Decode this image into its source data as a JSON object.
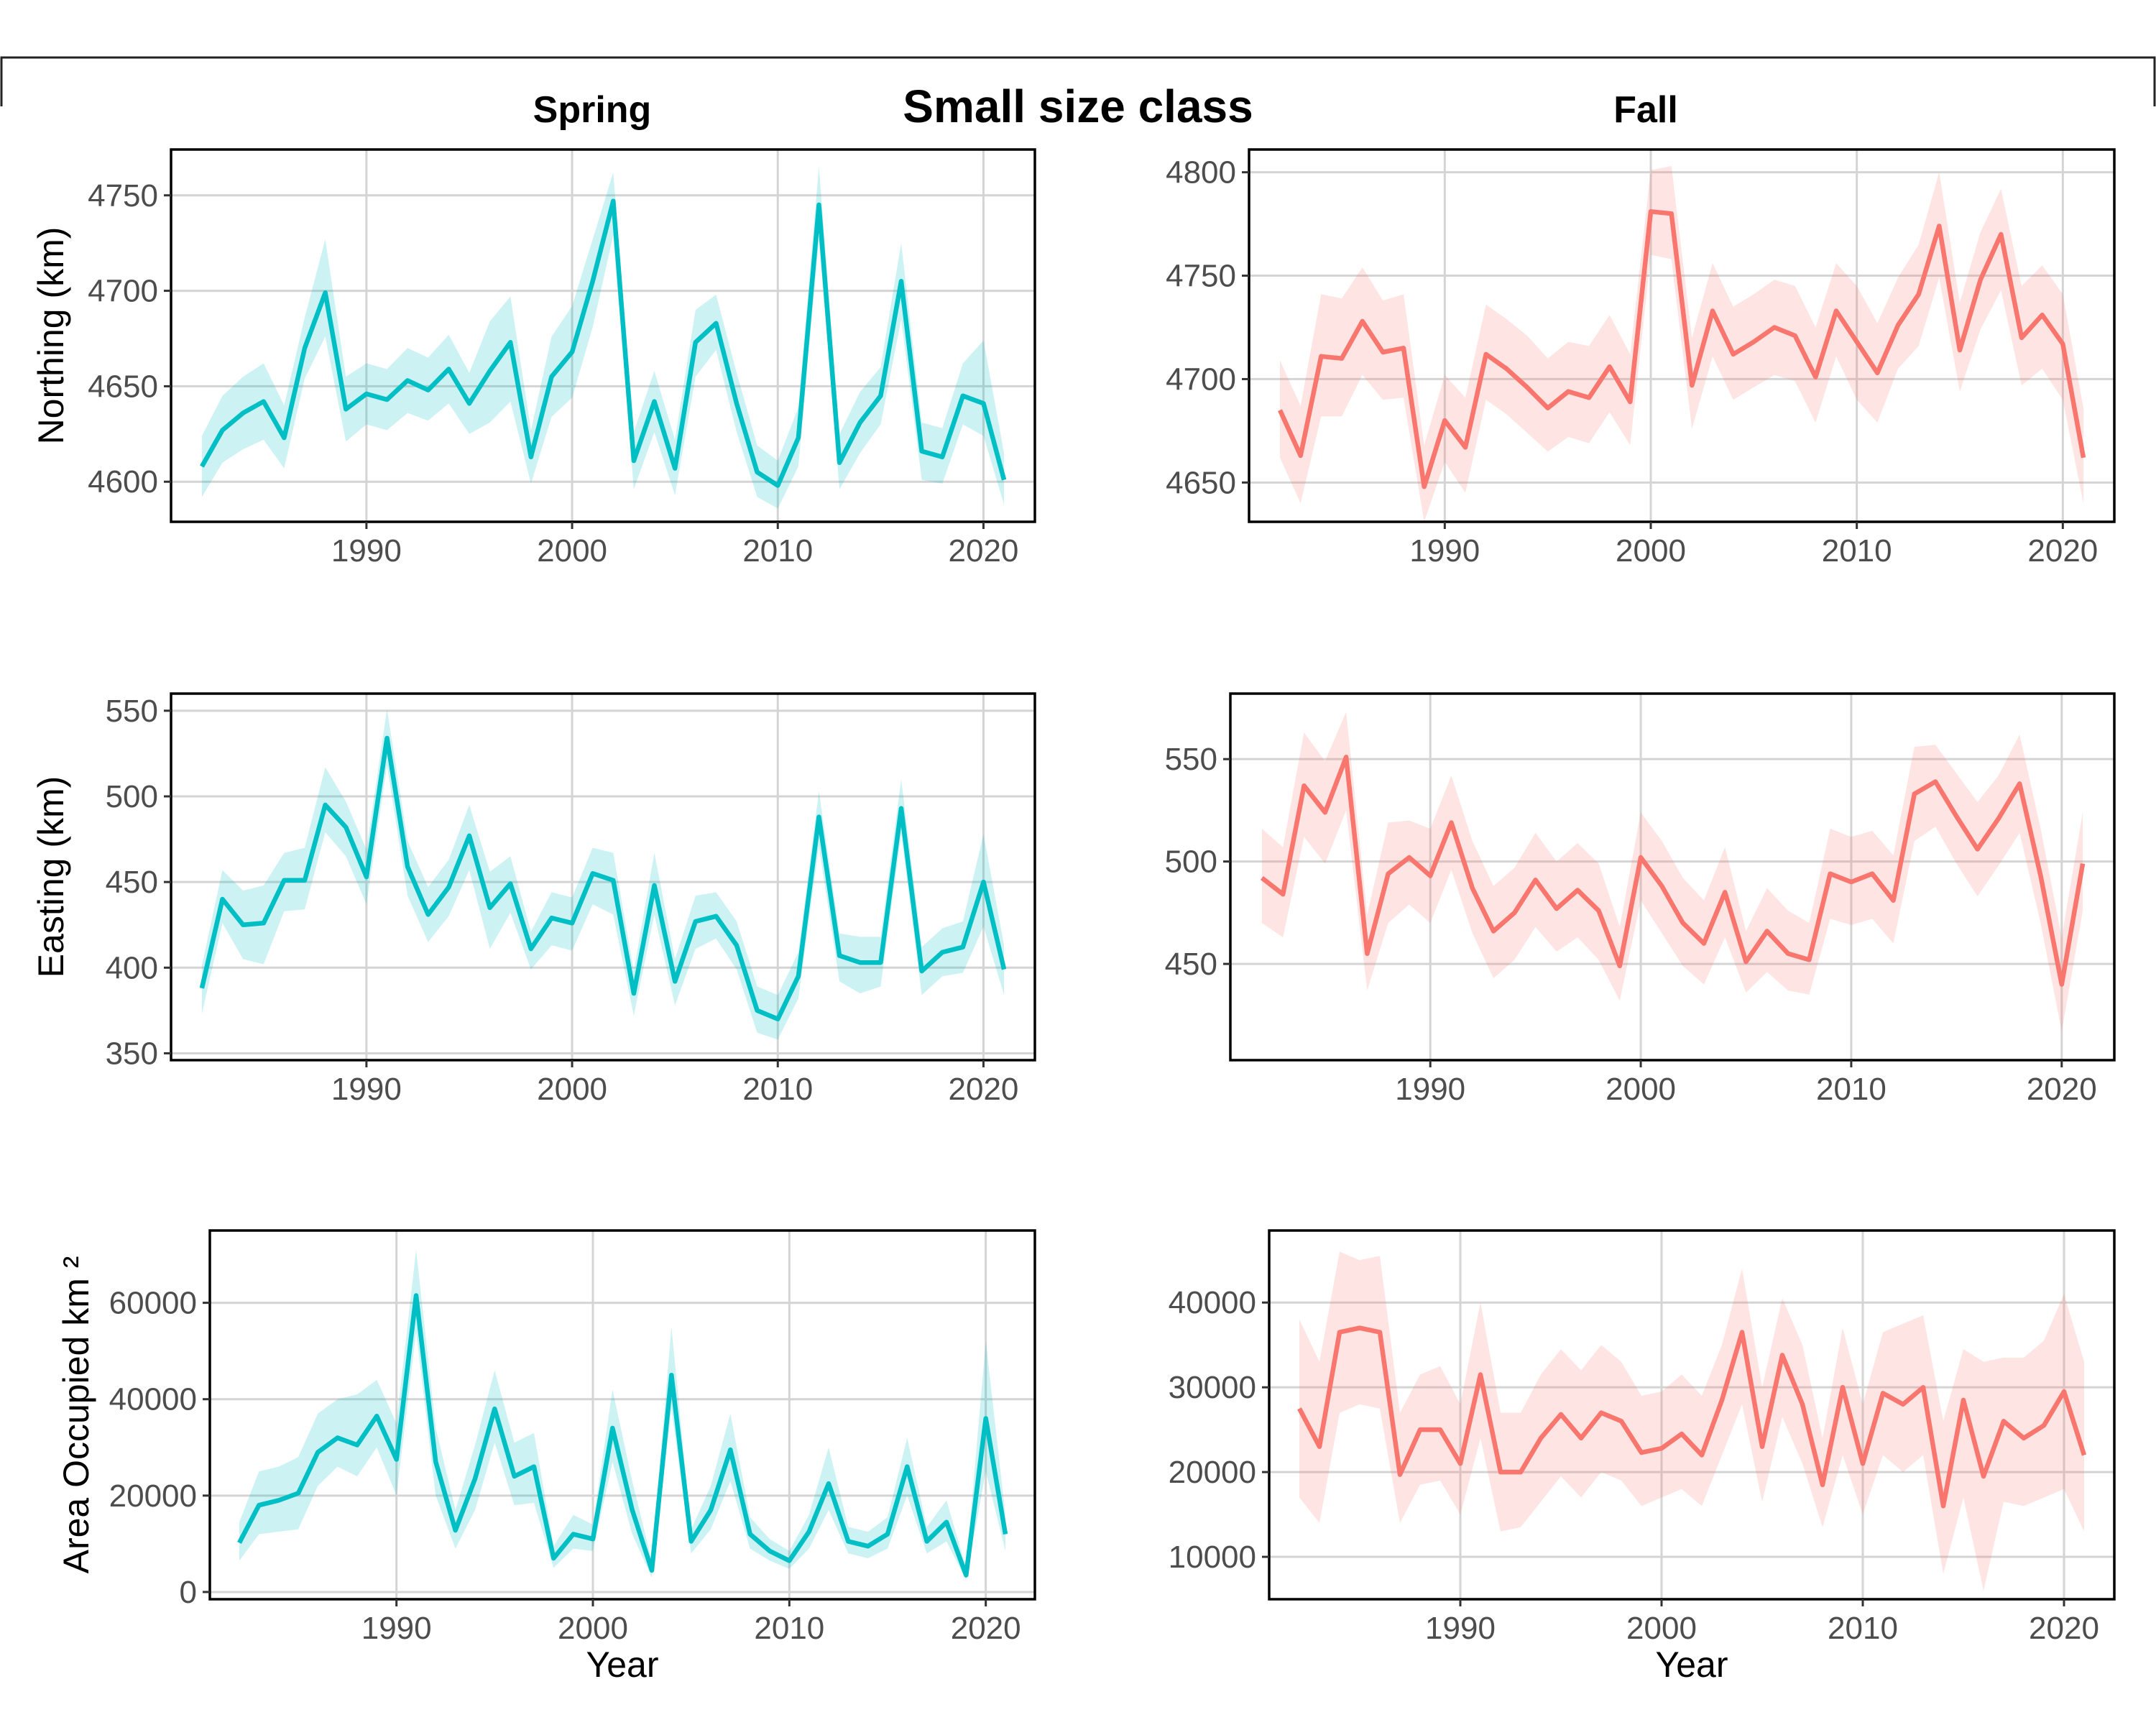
{
  "figure": {
    "title": "Small size class",
    "columns": [
      "Spring",
      "Fall"
    ],
    "xlabel": "Year"
  },
  "colors": {
    "spring": "#00BFC4",
    "fall": "#F8766D",
    "grid": "#d4d4d4"
  },
  "chart_data": [
    {
      "type": "line",
      "season": "Spring",
      "metric": "Northing",
      "ylabel": "Northing (km)",
      "xlim": [
        1980.5,
        2022.5
      ],
      "ylim": [
        4579,
        4774
      ],
      "xticks": [
        1990,
        2000,
        2010,
        2020
      ],
      "yticks": [
        4600,
        4650,
        4700,
        4750
      ],
      "x": [
        1982,
        1983,
        1984,
        1985,
        1986,
        1987,
        1988,
        1989,
        1990,
        1991,
        1992,
        1993,
        1994,
        1995,
        1996,
        1997,
        1998,
        1999,
        2000,
        2001,
        2002,
        2003,
        2004,
        2005,
        2006,
        2007,
        2008,
        2009,
        2010,
        2011,
        2012,
        2013,
        2014,
        2015,
        2016,
        2017,
        2018,
        2019,
        2020,
        2021
      ],
      "y": [
        4608,
        4627,
        4636,
        4642,
        4623,
        4670,
        4699,
        4638,
        4646,
        4643,
        4653,
        4648,
        4659,
        4641,
        4658,
        4673,
        4613,
        4655,
        4668,
        4705,
        4747,
        4611,
        4642,
        4607,
        4673,
        4683,
        4641,
        4605,
        4598,
        4623,
        4745,
        4610,
        4631,
        4645,
        4705,
        4616,
        4613,
        4645,
        4641,
        4601
      ],
      "lower": [
        4592,
        4610,
        4617,
        4622,
        4607,
        4654,
        4676,
        4621,
        4630,
        4627,
        4636,
        4632,
        4641,
        4625,
        4631,
        4642,
        4599,
        4634,
        4644,
        4681,
        4729,
        4596,
        4626,
        4593,
        4655,
        4669,
        4626,
        4592,
        4586,
        4608,
        4727,
        4596,
        4615,
        4630,
        4685,
        4601,
        4599,
        4630,
        4624,
        4588
      ],
      "upper": [
        4624,
        4645,
        4655,
        4662,
        4640,
        4686,
        4727,
        4655,
        4662,
        4659,
        4670,
        4665,
        4677,
        4657,
        4684,
        4697,
        4627,
        4676,
        4692,
        4727,
        4762,
        4626,
        4658,
        4622,
        4690,
        4698,
        4657,
        4619,
        4611,
        4639,
        4765,
        4625,
        4647,
        4660,
        4725,
        4631,
        4628,
        4662,
        4674,
        4615
      ]
    },
    {
      "type": "line",
      "season": "Fall",
      "metric": "Northing",
      "ylabel": "",
      "xlim": [
        1980.5,
        2022.5
      ],
      "ylim": [
        4631,
        4811
      ],
      "xticks": [
        1990,
        2000,
        2010,
        2020
      ],
      "yticks": [
        4650,
        4700,
        4750,
        4800
      ],
      "x": [
        1982,
        1983,
        1984,
        1985,
        1986,
        1987,
        1988,
        1989,
        1990,
        1991,
        1992,
        1993,
        1994,
        1995,
        1996,
        1997,
        1998,
        1999,
        2000,
        2001,
        2002,
        2003,
        2004,
        2005,
        2006,
        2007,
        2008,
        2009,
        2010,
        2011,
        2012,
        2013,
        2014,
        2015,
        2016,
        2017,
        2018,
        2019,
        2020,
        2021
      ],
      "y": [
        4685,
        4663,
        4711,
        4710,
        4728,
        4713,
        4715,
        4648,
        4680,
        4667,
        4712,
        4705,
        4696,
        4686,
        4694,
        4691,
        4706,
        4689,
        4781,
        4780,
        4697,
        4733,
        4712,
        4718,
        4725,
        4721,
        4701,
        4733,
        4718,
        4703,
        4726,
        4741,
        4774,
        4714,
        4748,
        4770,
        4720,
        4731,
        4717,
        4662
      ],
      "lower": [
        4662,
        4640,
        4682,
        4682,
        4702,
        4690,
        4691,
        4631,
        4660,
        4645,
        4690,
        4683,
        4674,
        4665,
        4672,
        4669,
        4684,
        4668,
        4760,
        4758,
        4676,
        4711,
        4690,
        4696,
        4702,
        4699,
        4679,
        4711,
        4690,
        4679,
        4705,
        4716,
        4749,
        4694,
        4724,
        4743,
        4697,
        4705,
        4690,
        4640
      ],
      "upper": [
        4709,
        4687,
        4741,
        4739,
        4754,
        4738,
        4741,
        4668,
        4702,
        4691,
        4736,
        4729,
        4721,
        4710,
        4718,
        4716,
        4731,
        4712,
        4801,
        4803,
        4720,
        4756,
        4735,
        4741,
        4748,
        4745,
        4725,
        4756,
        4745,
        4727,
        4749,
        4765,
        4800,
        4737,
        4771,
        4792,
        4745,
        4755,
        4741,
        4686
      ]
    },
    {
      "type": "line",
      "season": "Spring",
      "metric": "Easting",
      "ylabel": "Easting (km)",
      "xlim": [
        1980.5,
        2022.5
      ],
      "ylim": [
        346,
        560
      ],
      "xticks": [
        1990,
        2000,
        2010,
        2020
      ],
      "yticks": [
        350,
        400,
        450,
        500,
        550
      ],
      "x": [
        1982,
        1983,
        1984,
        1985,
        1986,
        1987,
        1988,
        1989,
        1990,
        1991,
        1992,
        1993,
        1994,
        1995,
        1996,
        1997,
        1998,
        1999,
        2000,
        2001,
        2002,
        2003,
        2004,
        2005,
        2006,
        2007,
        2008,
        2009,
        2010,
        2011,
        2012,
        2013,
        2014,
        2015,
        2016,
        2017,
        2018,
        2019,
        2020,
        2021
      ],
      "y": [
        388,
        440,
        425,
        426,
        451,
        451,
        495,
        482,
        453,
        534,
        459,
        431,
        447,
        477,
        435,
        449,
        411,
        429,
        426,
        455,
        451,
        385,
        448,
        392,
        427,
        430,
        413,
        375,
        370,
        395,
        488,
        407,
        403,
        403,
        493,
        398,
        409,
        412,
        450,
        399
      ],
      "lower": [
        373,
        426,
        405,
        402,
        433,
        434,
        479,
        465,
        437,
        518,
        442,
        415,
        430,
        457,
        411,
        432,
        399,
        413,
        410,
        437,
        431,
        372,
        431,
        378,
        411,
        417,
        399,
        362,
        358,
        382,
        471,
        392,
        385,
        389,
        478,
        384,
        395,
        397,
        424,
        384
      ],
      "upper": [
        401,
        457,
        445,
        448,
        467,
        470,
        517,
        497,
        469,
        551,
        474,
        447,
        463,
        495,
        456,
        465,
        421,
        444,
        441,
        470,
        467,
        398,
        467,
        405,
        442,
        444,
        427,
        389,
        384,
        409,
        503,
        420,
        418,
        418,
        510,
        412,
        423,
        427,
        478,
        413
      ]
    },
    {
      "type": "line",
      "season": "Fall",
      "metric": "Easting",
      "ylabel": "",
      "xlim": [
        1980.5,
        2022.5
      ],
      "ylim": [
        403,
        582
      ],
      "xticks": [
        1990,
        2000,
        2010,
        2020
      ],
      "yticks": [
        450,
        500,
        550
      ],
      "x": [
        1982,
        1983,
        1984,
        1985,
        1986,
        1987,
        1988,
        1989,
        1990,
        1991,
        1992,
        1993,
        1994,
        1995,
        1996,
        1997,
        1998,
        1999,
        2000,
        2001,
        2002,
        2003,
        2004,
        2005,
        2006,
        2007,
        2008,
        2009,
        2010,
        2011,
        2012,
        2013,
        2014,
        2015,
        2016,
        2017,
        2018,
        2019,
        2020,
        2021
      ],
      "y": [
        492,
        484,
        537,
        524,
        551,
        455,
        494,
        502,
        493,
        519,
        487,
        466,
        475,
        491,
        477,
        486,
        476,
        449,
        502,
        488,
        470,
        460,
        485,
        451,
        466,
        455,
        452,
        494,
        490,
        494,
        481,
        533,
        539,
        522,
        506,
        521,
        538,
        493,
        440,
        499
      ],
      "lower": [
        470,
        463,
        512,
        499,
        525,
        437,
        470,
        479,
        470,
        496,
        465,
        443,
        452,
        468,
        456,
        463,
        452,
        432,
        481,
        465,
        449,
        440,
        463,
        436,
        446,
        437,
        435,
        472,
        469,
        472,
        460,
        510,
        517,
        499,
        483,
        498,
        514,
        470,
        417,
        476
      ],
      "upper": [
        516,
        507,
        563,
        549,
        573,
        474,
        519,
        520,
        516,
        542,
        510,
        488,
        497,
        514,
        500,
        509,
        499,
        468,
        524,
        510,
        492,
        481,
        507,
        466,
        487,
        476,
        470,
        516,
        512,
        515,
        503,
        556,
        557,
        543,
        529,
        542,
        562,
        516,
        463,
        524
      ]
    },
    {
      "type": "line",
      "season": "Spring",
      "metric": "Area Occupied",
      "ylabel": "Area Occupied km ²",
      "xlim": [
        1980.5,
        2022.5
      ],
      "ylim": [
        -1500,
        75000
      ],
      "xticks": [
        1990,
        2000,
        2010,
        2020
      ],
      "yticks": [
        0,
        20000,
        40000,
        60000
      ],
      "x": [
        1982,
        1983,
        1984,
        1985,
        1986,
        1987,
        1988,
        1989,
        1990,
        1991,
        1992,
        1993,
        1994,
        1995,
        1996,
        1997,
        1998,
        1999,
        2000,
        2001,
        2002,
        2003,
        2004,
        2005,
        2006,
        2007,
        2008,
        2009,
        2010,
        2011,
        2012,
        2013,
        2014,
        2015,
        2016,
        2017,
        2018,
        2019,
        2020,
        2021
      ],
      "y": [
        10200,
        18000,
        19000,
        20500,
        29000,
        32000,
        30500,
        36500,
        27500,
        61500,
        27000,
        12800,
        23500,
        38000,
        24000,
        26000,
        7000,
        12000,
        11000,
        34000,
        17000,
        4500,
        45000,
        10500,
        17000,
        29500,
        12000,
        8500,
        6500,
        12500,
        22500,
        10500,
        9500,
        12000,
        26000,
        10500,
        14500,
        3500,
        36000,
        12000
      ],
      "lower": [
        6500,
        12000,
        12500,
        13000,
        22000,
        26000,
        24000,
        30000,
        20000,
        54000,
        20000,
        9000,
        17000,
        31000,
        18000,
        18500,
        5000,
        9000,
        8500,
        27000,
        12000,
        3000,
        38000,
        8000,
        13000,
        23000,
        9000,
        6500,
        4800,
        9000,
        17000,
        8000,
        7000,
        9000,
        20000,
        8000,
        10500,
        2500,
        25000,
        8500
      ],
      "upper": [
        14500,
        25000,
        26000,
        28000,
        37000,
        40000,
        41000,
        44000,
        35000,
        71000,
        34000,
        17000,
        30500,
        46000,
        31000,
        33000,
        9500,
        16000,
        14000,
        42000,
        23000,
        6500,
        55000,
        13000,
        22000,
        37000,
        15500,
        11000,
        8500,
        16000,
        30000,
        13500,
        12500,
        15500,
        32000,
        13500,
        19000,
        5000,
        52000,
        16000
      ]
    },
    {
      "type": "line",
      "season": "Fall",
      "metric": "Area Occupied",
      "ylabel": "",
      "xlim": [
        1980.5,
        2022.5
      ],
      "ylim": [
        5000,
        48500
      ],
      "xticks": [
        1990,
        2000,
        2010,
        2020
      ],
      "yticks": [
        10000,
        20000,
        30000,
        40000
      ],
      "x": [
        1982,
        1983,
        1984,
        1985,
        1986,
        1987,
        1988,
        1989,
        1990,
        1991,
        1992,
        1993,
        1994,
        1995,
        1996,
        1997,
        1998,
        1999,
        2000,
        2001,
        2002,
        2003,
        2004,
        2005,
        2006,
        2007,
        2008,
        2009,
        2010,
        2011,
        2012,
        2013,
        2014,
        2015,
        2016,
        2017,
        2018,
        2019,
        2020,
        2021
      ],
      "y": [
        27500,
        23000,
        36500,
        37000,
        36500,
        19700,
        25000,
        25000,
        21000,
        31500,
        20000,
        20000,
        24000,
        26800,
        24000,
        27000,
        26000,
        22300,
        22800,
        24500,
        22000,
        28500,
        36500,
        23000,
        33800,
        28000,
        18500,
        30000,
        21000,
        29300,
        28000,
        30000,
        16000,
        28500,
        19500,
        26000,
        24000,
        25500,
        29500,
        22000
      ],
      "lower": [
        17000,
        14000,
        27000,
        28000,
        27500,
        14000,
        18500,
        19000,
        15000,
        24000,
        13000,
        13500,
        16500,
        19500,
        17000,
        20000,
        19000,
        16000,
        17000,
        18000,
        16000,
        22000,
        28000,
        16500,
        26500,
        21000,
        13500,
        22000,
        15000,
        22000,
        20000,
        22000,
        8000,
        17000,
        6000,
        16500,
        16000,
        17000,
        18000,
        13000
      ],
      "upper": [
        38000,
        33000,
        46000,
        45000,
        45500,
        27000,
        31500,
        32500,
        28000,
        40000,
        27000,
        27000,
        31500,
        34500,
        32000,
        35000,
        33000,
        29000,
        29500,
        31500,
        29000,
        35000,
        44000,
        30000,
        40500,
        35000,
        24000,
        37000,
        28000,
        36500,
        37500,
        38500,
        26000,
        34500,
        33000,
        33500,
        33500,
        35500,
        41000,
        33000
      ]
    }
  ]
}
